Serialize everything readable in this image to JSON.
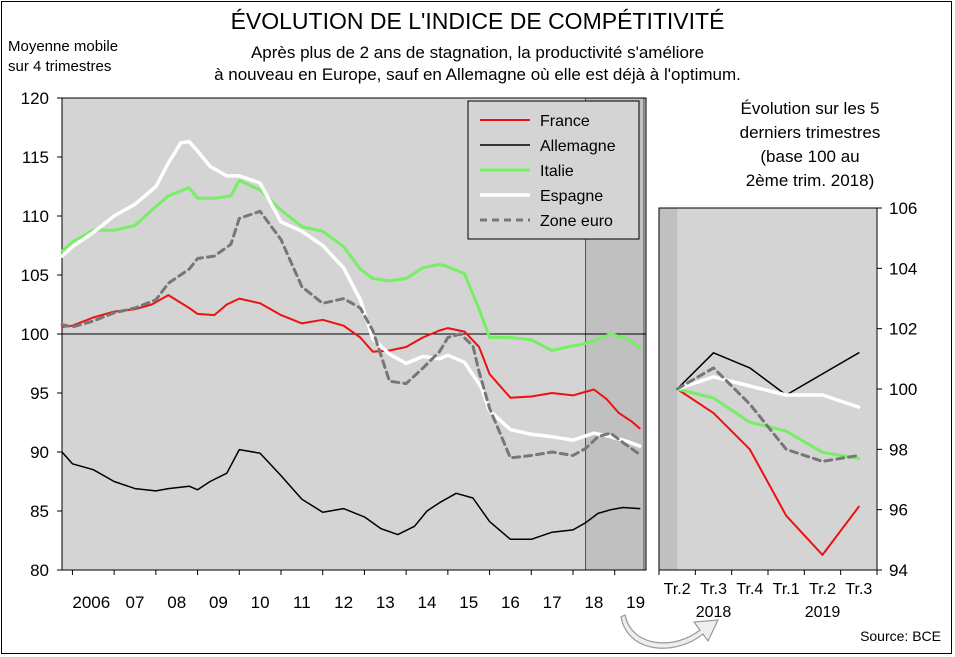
{
  "title": "ÉVOLUTION DE L'INDICE DE COMPÉTITIVITÉ",
  "subtitle": [
    "Après plus de 2 ans de stagnation, la productivité s'améliore",
    "à nouveau en Europe, sauf en Allemagne où elle est déjà à l'optimum."
  ],
  "ylabel": [
    "Moyenne mobile",
    "sur 4 trimestres"
  ],
  "source": "Source: BCE",
  "inset_title": [
    "Évolution sur les 5",
    "derniers trimestres",
    "(base 100 au",
    "2ème trim. 2018)"
  ],
  "colors": {
    "France": "#ee1111",
    "Allemagne": "#000000",
    "Italie": "#77ee66",
    "Espagne": "#ffffff",
    "Zone euro": "#777777",
    "plot_bg": "#d4d4d4",
    "shade": "#c0c0c0"
  },
  "chart_data": [
    {
      "type": "line",
      "ylim": [
        80,
        120
      ],
      "yticks": [
        80,
        85,
        90,
        95,
        100,
        105,
        110,
        115,
        120
      ],
      "xlim": [
        2005.75,
        2019.75
      ],
      "xtick_labels": [
        "2006",
        "07",
        "08",
        "09",
        "10",
        "11",
        "12",
        "13",
        "14",
        "15",
        "16",
        "17",
        "18",
        "19"
      ],
      "legend": "top-right",
      "grid": false,
      "reference_line": 100,
      "series": [
        {
          "name": "France",
          "x": [
            2005.75,
            2006.0,
            2006.5,
            2007.0,
            2007.5,
            2007.9,
            2008.3,
            2008.8,
            2009.0,
            2009.4,
            2009.7,
            2010.0,
            2010.5,
            2011.0,
            2011.5,
            2012.0,
            2012.5,
            2012.9,
            2013.2,
            2013.6,
            2014.0,
            2014.4,
            2014.8,
            2015.0,
            2015.4,
            2015.75,
            2016.0,
            2016.5,
            2017.0,
            2017.5,
            2018.0,
            2018.2,
            2018.5,
            2018.8,
            2019.1,
            2019.4,
            2019.6
          ],
          "y": [
            100.6,
            100.7,
            101.4,
            101.9,
            102.1,
            102.5,
            103.3,
            102.2,
            101.7,
            101.6,
            102.5,
            103.0,
            102.6,
            101.6,
            100.9,
            101.2,
            100.7,
            99.7,
            98.5,
            98.6,
            98.9,
            99.7,
            100.3,
            100.5,
            100.2,
            98.9,
            96.6,
            94.6,
            94.7,
            95.0,
            94.8,
            95.0,
            95.3,
            94.5,
            93.3,
            92.6,
            92.0
          ]
        },
        {
          "name": "Allemagne",
          "x": [
            2005.75,
            2006.0,
            2006.5,
            2007.0,
            2007.5,
            2008.0,
            2008.3,
            2008.8,
            2009.0,
            2009.3,
            2009.7,
            2010.0,
            2010.5,
            2011.0,
            2011.5,
            2012.0,
            2012.5,
            2013.0,
            2013.4,
            2013.8,
            2014.2,
            2014.5,
            2014.8,
            2015.2,
            2015.6,
            2016.0,
            2016.5,
            2017.0,
            2017.5,
            2018.0,
            2018.3,
            2018.6,
            2018.9,
            2019.2,
            2019.6
          ],
          "y": [
            90.0,
            89.0,
            88.5,
            87.5,
            86.9,
            86.7,
            86.9,
            87.1,
            86.8,
            87.5,
            88.2,
            90.2,
            89.9,
            88.0,
            86.0,
            84.9,
            85.2,
            84.5,
            83.5,
            83.0,
            83.7,
            85.0,
            85.7,
            86.5,
            86.1,
            84.1,
            82.6,
            82.6,
            83.2,
            83.4,
            84.0,
            84.8,
            85.1,
            85.3,
            85.2
          ]
        },
        {
          "name": "Italie",
          "x": [
            2005.75,
            2006.0,
            2006.5,
            2007.0,
            2007.5,
            2008.0,
            2008.3,
            2008.8,
            2009.0,
            2009.4,
            2009.8,
            2010.0,
            2010.5,
            2011.0,
            2011.5,
            2012.0,
            2012.5,
            2012.9,
            2013.2,
            2013.6,
            2014.0,
            2014.4,
            2014.8,
            2015.0,
            2015.4,
            2015.75,
            2016.0,
            2016.5,
            2017.0,
            2017.5,
            2018.0,
            2018.2,
            2018.5,
            2018.9,
            2019.3,
            2019.6
          ],
          "y": [
            107.0,
            107.8,
            108.8,
            108.8,
            109.2,
            110.8,
            111.7,
            112.4,
            111.5,
            111.5,
            111.7,
            113.0,
            112.2,
            110.5,
            109.1,
            108.7,
            107.4,
            105.5,
            104.7,
            104.5,
            104.7,
            105.6,
            105.9,
            105.7,
            105.1,
            102.1,
            99.7,
            99.7,
            99.5,
            98.6,
            99.0,
            99.1,
            99.4,
            100.0,
            99.6,
            98.8
          ]
        },
        {
          "name": "Espagne",
          "x": [
            2005.75,
            2006.0,
            2006.5,
            2007.0,
            2007.5,
            2008.0,
            2008.3,
            2008.6,
            2008.8,
            2009.0,
            2009.3,
            2009.7,
            2010.0,
            2010.5,
            2011.0,
            2011.5,
            2012.0,
            2012.5,
            2012.9,
            2013.2,
            2013.6,
            2014.0,
            2014.4,
            2014.8,
            2015.0,
            2015.4,
            2015.8,
            2016.0,
            2016.5,
            2017.0,
            2017.5,
            2018.0,
            2018.5,
            2018.9,
            2019.3,
            2019.6
          ],
          "y": [
            106.6,
            107.4,
            108.6,
            110.0,
            111.0,
            112.5,
            114.5,
            116.2,
            116.3,
            115.5,
            114.2,
            113.4,
            113.4,
            112.8,
            109.5,
            108.7,
            107.5,
            105.6,
            102.9,
            99.6,
            98.3,
            97.5,
            98.1,
            97.9,
            98.2,
            97.6,
            95.5,
            93.5,
            91.9,
            91.5,
            91.3,
            91.0,
            91.6,
            91.3,
            90.9,
            90.5
          ]
        },
        {
          "name": "Zone euro",
          "x": [
            2005.75,
            2006.0,
            2006.5,
            2007.0,
            2007.5,
            2008.0,
            2008.3,
            2008.8,
            2009.0,
            2009.4,
            2009.8,
            2010.0,
            2010.5,
            2011.0,
            2011.5,
            2012.0,
            2012.5,
            2012.9,
            2013.2,
            2013.6,
            2014.0,
            2014.4,
            2014.8,
            2015.0,
            2015.3,
            2015.6,
            2015.75,
            2016.0,
            2016.5,
            2017.0,
            2017.5,
            2018.0,
            2018.3,
            2018.6,
            2018.9,
            2019.2,
            2019.6
          ],
          "y": [
            100.8,
            100.6,
            101.1,
            101.8,
            102.2,
            102.9,
            104.3,
            105.5,
            106.4,
            106.6,
            107.6,
            109.8,
            110.4,
            108.0,
            104.0,
            102.6,
            103.0,
            102.2,
            100.3,
            96.0,
            95.8,
            97.1,
            98.5,
            99.7,
            100.0,
            99.0,
            96.8,
            93.7,
            89.5,
            89.7,
            90.0,
            89.7,
            90.3,
            91.3,
            91.6,
            90.8,
            89.8
          ]
        }
      ]
    },
    {
      "type": "line",
      "ylim": [
        94,
        106
      ],
      "yticks": [
        94,
        96,
        98,
        100,
        102,
        104,
        106
      ],
      "categories": [
        "Tr.2",
        "Tr.3",
        "Tr.4",
        "Tr.1",
        "Tr.2",
        "Tr.3"
      ],
      "year_labels": [
        "2018",
        "2019"
      ],
      "series": [
        {
          "name": "France",
          "values": [
            100.0,
            99.2,
            98.0,
            95.8,
            94.5,
            96.1
          ]
        },
        {
          "name": "Allemagne",
          "values": [
            100.0,
            101.2,
            100.7,
            99.8,
            100.5,
            101.2
          ]
        },
        {
          "name": "Italie",
          "values": [
            100.0,
            99.7,
            98.9,
            98.6,
            97.9,
            97.7
          ]
        },
        {
          "name": "Espagne",
          "values": [
            100.0,
            100.4,
            100.1,
            99.8,
            99.8,
            99.4
          ]
        },
        {
          "name": "Zone euro",
          "values": [
            100.0,
            100.7,
            99.5,
            98.0,
            97.6,
            97.8
          ]
        }
      ]
    }
  ]
}
